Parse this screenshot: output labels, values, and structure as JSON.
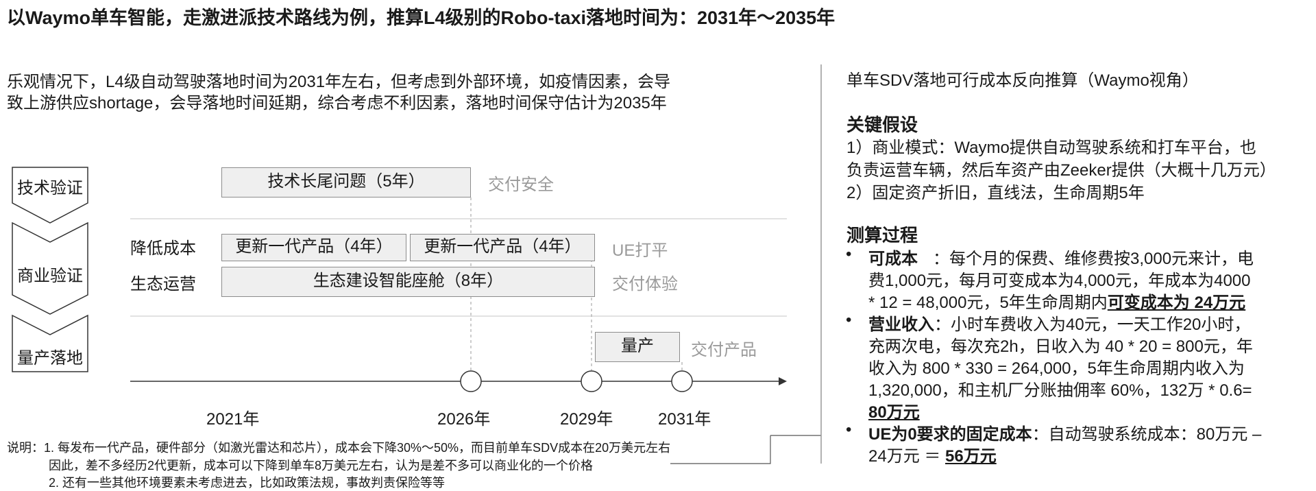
{
  "title": "以Waymo单车智能，走激进派技术路线为例，推算L4级别的Robo-taxi落地时间为：2031年～2035年",
  "intro": [
    "乐观情况下，L4级自动驾驶落地时间为2031年左右，但考虑到外部环境，如疫情因素，会导",
    "致上游供应shortage，会导落地时间延期，综合考虑不利因素，落地时间保守估计为2035年"
  ],
  "stages": [
    "技术验证",
    "商业验证",
    "量产落地"
  ],
  "row_labels": [
    "降低成本",
    "生态运营"
  ],
  "boxes": {
    "longtail": "技术长尾问题（5年）",
    "update1": "更新一代产品（4年）",
    "update2": "更新一代产品（4年）",
    "eco": "生态建设智能座舱（8年）",
    "mass": "量产"
  },
  "notes": {
    "safety": "交付安全",
    "ue": "UE打平",
    "experience": "交付体验",
    "product": "交付产品"
  },
  "years": [
    "2021年",
    "2026年",
    "2029年",
    "2031年"
  ],
  "explanation": [
    "说明：1. 每发布一代产品，硬件部分（如激光雷达和芯片），成本会下降30%～50%，而目前单车SDV成本在20万美元左右",
    "因此，差不多经历2代更新，成本可以下降到单车8万美元左右，认为是差不多可以商业化的一个价格",
    "2. 还有一些其他环境要素未考虑进去，比如政策法规，事故判责保险等等"
  ],
  "right": {
    "subtitle": "单车SDV落地可行成本反向推算（Waymo视角）",
    "assumptions_heading": "关键假设",
    "assumptions": [
      "1）商业模式：Waymo提供自动驾驶系统和打车平台，也",
      "负责运营车辆，然后车资产由Zeeker提供（大概十几万元）",
      "2）固定资产折旧，直线法，生命周期5年"
    ],
    "process_heading": "测算过程",
    "b1_label": "可成本",
    "b1_lines": [
      "：每个月的保费、维修费按3,000元来计，电",
      "费1,000元，每月可变成本为4,000元，年成本为4000",
      "* 12 = 48,000元，5年生命周期内"
    ],
    "b1_emph": "可变成本为 24万元",
    "b2_label": "营业收入",
    "b2_lines": [
      "：小时车费收入为40元，一天工作20小时，",
      "充两次电，每次充2h，日收入为 40 * 20 = 800元，年",
      "收入为 800 * 330 = 264,000，5年生命周期内收入为",
      "1,320,000，和主机厂分账抽佣率 60%，132万 * 0.6="
    ],
    "b2_emph": "80万元",
    "b3_label": "UE为0要求的固定成本",
    "b3_line1": "：自动驾驶系统成本：80万元 –",
    "b3_line2": "24万元 ＝ ",
    "b3_emph": "56万元",
    "bullet_char": "•"
  }
}
